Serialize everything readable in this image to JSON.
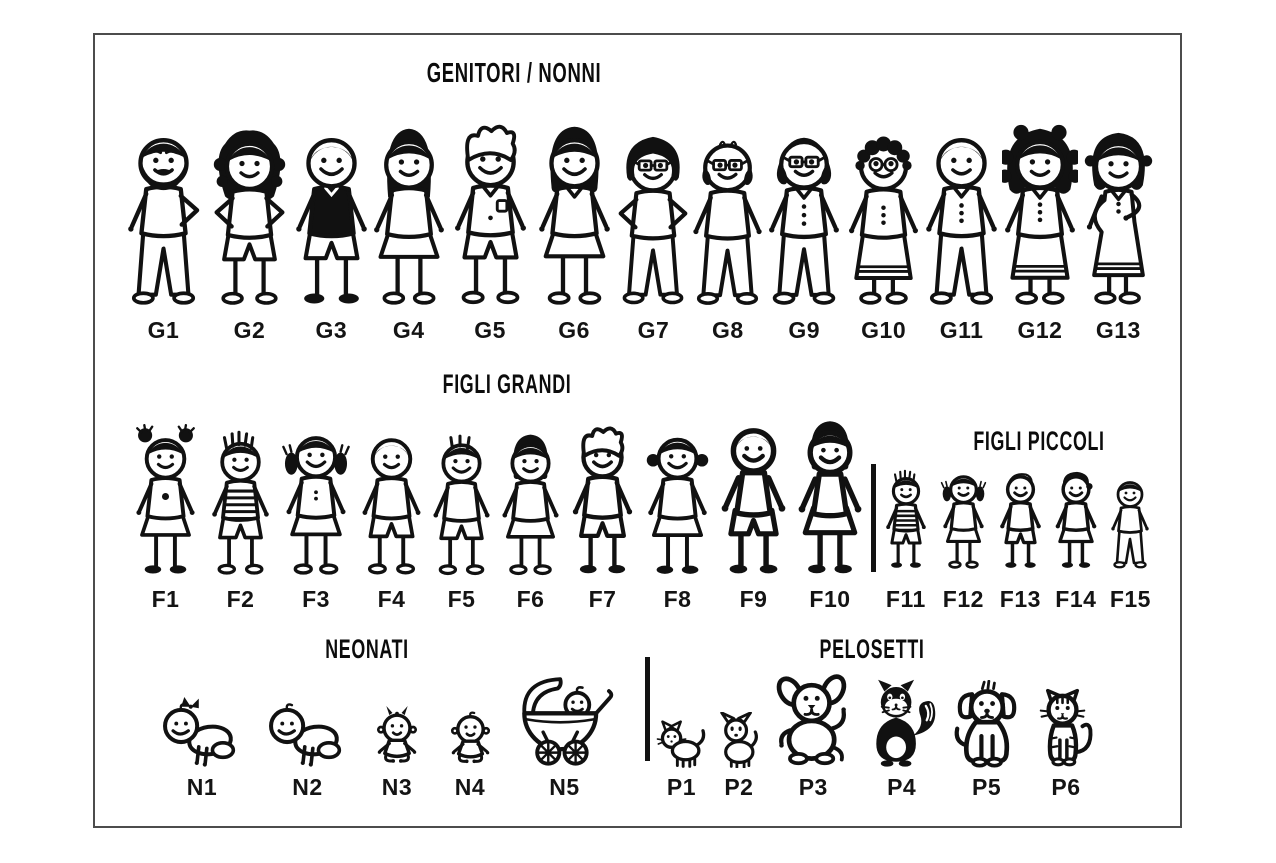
{
  "page": {
    "background": "#ffffff",
    "ink": "#111111",
    "frame_border": "#4c4c4c"
  },
  "sections": [
    {
      "id": "genitori-nonni",
      "title": "GENITORI / NONNI",
      "items": [
        {
          "id": "G1",
          "label": "G1",
          "figure": "man-beard"
        },
        {
          "id": "G2",
          "label": "G2",
          "figure": "woman-curly-hands-on-hips"
        },
        {
          "id": "G3",
          "label": "G3",
          "figure": "man-dark-shirt"
        },
        {
          "id": "G4",
          "label": "G4",
          "figure": "woman-long-hair-skirt"
        },
        {
          "id": "G5",
          "label": "G5",
          "figure": "man-collar-shirt-shorts"
        },
        {
          "id": "G6",
          "label": "G6",
          "figure": "woman-long-hair-collar-skirt"
        },
        {
          "id": "G7",
          "label": "G7",
          "figure": "woman-short-curly-glasses"
        },
        {
          "id": "G8",
          "label": "G8",
          "figure": "man-bald-glasses"
        },
        {
          "id": "G9",
          "label": "G9",
          "figure": "grandpa-glasses"
        },
        {
          "id": "G10",
          "label": "G10",
          "figure": "grandma-glasses"
        },
        {
          "id": "G11",
          "label": "G11",
          "figure": "man-polo-buttons"
        },
        {
          "id": "G12",
          "label": "G12",
          "figure": "woman-big-curly-dress"
        },
        {
          "id": "G13",
          "label": "G13",
          "figure": "pregnant-woman"
        }
      ]
    },
    {
      "id": "figli-grandi",
      "title": "FIGLI GRANDI",
      "items": [
        {
          "id": "F1",
          "label": "F1",
          "figure": "girl-puff-pigtails"
        },
        {
          "id": "F2",
          "label": "F2",
          "figure": "boy-spiky-striped-shirt"
        },
        {
          "id": "F3",
          "label": "F3",
          "figure": "girl-pigtails-dress"
        },
        {
          "id": "F4",
          "label": "F4",
          "figure": "boy-dark-hair"
        },
        {
          "id": "F5",
          "label": "F5",
          "figure": "boy-spiky-hair"
        },
        {
          "id": "F6",
          "label": "F6",
          "figure": "girl-bob-skirt"
        },
        {
          "id": "F7",
          "label": "F7",
          "figure": "boy-messy-hair"
        },
        {
          "id": "F8",
          "label": "F8",
          "figure": "girl-side-buns-skirt"
        },
        {
          "id": "F9",
          "label": "F9",
          "figure": "boy-tank-top"
        },
        {
          "id": "F10",
          "label": "F10",
          "figure": "girl-bob-tank-skirt"
        }
      ]
    },
    {
      "id": "figli-piccoli",
      "title": "FIGLI PICCOLI",
      "items": [
        {
          "id": "F11",
          "label": "F11",
          "figure": "little-boy-spiky-striped"
        },
        {
          "id": "F12",
          "label": "F12",
          "figure": "little-girl-pigtails"
        },
        {
          "id": "F13",
          "label": "F13",
          "figure": "little-boy-tee-shorts"
        },
        {
          "id": "F14",
          "label": "F14",
          "figure": "little-girl-skirt"
        },
        {
          "id": "F15",
          "label": "F15",
          "figure": "little-boy-pants"
        }
      ]
    },
    {
      "id": "neonati",
      "title": "NEONATI",
      "items": [
        {
          "id": "N1",
          "label": "N1",
          "figure": "crawling-baby-bow"
        },
        {
          "id": "N2",
          "label": "N2",
          "figure": "crawling-baby"
        },
        {
          "id": "N3",
          "label": "N3",
          "figure": "sitting-baby-bow"
        },
        {
          "id": "N4",
          "label": "N4",
          "figure": "sitting-baby"
        },
        {
          "id": "N5",
          "label": "N5",
          "figure": "baby-in-pram"
        }
      ]
    },
    {
      "id": "pelosetti",
      "title": "PELOSETTI",
      "items": [
        {
          "id": "P1",
          "label": "P1",
          "figure": "kitten"
        },
        {
          "id": "P2",
          "label": "P2",
          "figure": "small-dog"
        },
        {
          "id": "P3",
          "label": "P3",
          "figure": "puppy-big-ears"
        },
        {
          "id": "P4",
          "label": "P4",
          "figure": "black-cat-bushy-tail"
        },
        {
          "id": "P5",
          "label": "P5",
          "figure": "dog-floppy-ears"
        },
        {
          "id": "P6",
          "label": "P6",
          "figure": "tabby-cat"
        }
      ]
    }
  ]
}
